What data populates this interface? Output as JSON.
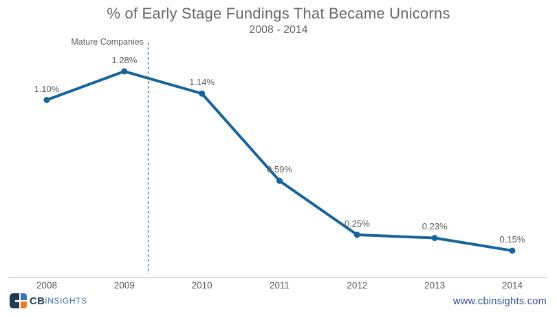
{
  "footer": {
    "logo_cb": "CB",
    "logo_insights": "INSIGHTS",
    "website": "www.cbinsights.com"
  },
  "colors": {
    "line": "#16649b",
    "marker": "#16649b",
    "dashed_divider": "#2c6f9e",
    "axis": "#dcdcdc",
    "label_text": "#595959",
    "title_text": "#68686d",
    "website_link": "#2e4d9b",
    "logo_navy": "#203a54",
    "logo_blue": "#3a77b5",
    "logo_orange": "#ea7d2c"
  },
  "chart_data": {
    "type": "line",
    "title": "% of Early Stage Fundings That Became Unicorns",
    "subtitle": "2008 - 2014",
    "categories": [
      "2008",
      "2009",
      "2010",
      "2011",
      "2012",
      "2013",
      "2014"
    ],
    "values": [
      1.1,
      1.28,
      1.14,
      0.59,
      0.25,
      0.23,
      0.15
    ],
    "labels": [
      "1.10%",
      "1.28%",
      "1.14%",
      "0.59%",
      "0.25%",
      "0.23%",
      "0.15%"
    ],
    "annotation": "Mature Companies",
    "annotation_between": [
      "2009",
      "2010"
    ],
    "xlabel": "",
    "ylabel": "",
    "ylim": [
      0,
      1.73
    ],
    "grid": false,
    "legend": false,
    "data_labels": true
  }
}
